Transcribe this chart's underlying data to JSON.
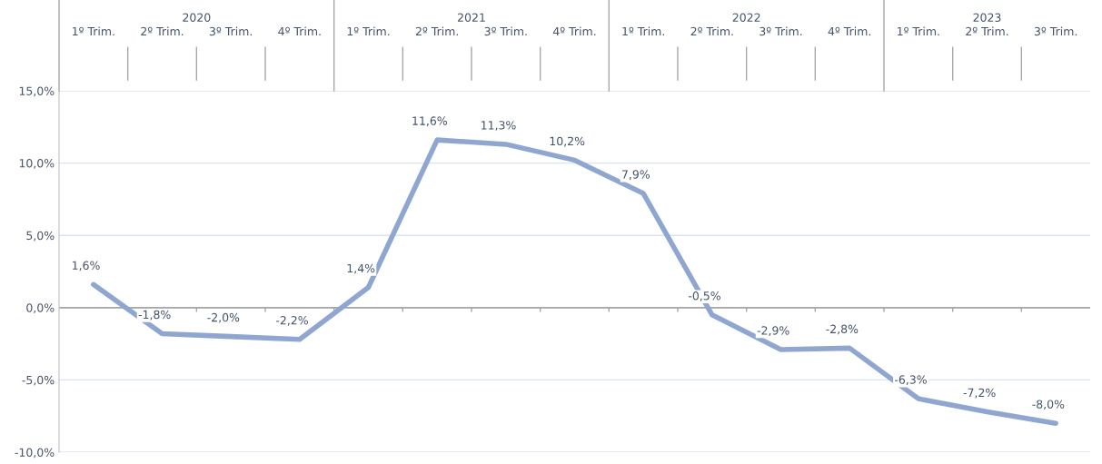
{
  "chart_data": {
    "type": "line",
    "categories": [
      "1º Trim.",
      "2º Trim.",
      "3º Trim.",
      "4º Trim.",
      "1º Trim.",
      "2º Trim.",
      "3º Trim.",
      "4º Trim.",
      "1º Trim.",
      "2º Trim.",
      "3º Trim.",
      "4º Trim.",
      "1º Trim.",
      "2º Trim.",
      "3º Trim."
    ],
    "series": [
      {
        "color": "#8fa7d0",
        "values": [
          1.6,
          -1.8,
          -2.0,
          -2.2,
          1.4,
          11.6,
          11.3,
          10.2,
          7.9,
          -0.5,
          -2.9,
          -2.8,
          -6.3,
          -7.2,
          -8.0
        ],
        "value_labels": [
          "1,6%",
          "-1,8%",
          "-2,0%",
          "-2,2%",
          "1,4%",
          "11,6%",
          "11,3%",
          "10,2%",
          "7,9%",
          "-0,5%",
          "-2,9%",
          "-2,8%",
          "-6,3%",
          "-7,2%",
          "-8,0%"
        ]
      }
    ],
    "annotations": [
      "2020",
      "2021",
      "2022",
      "2023"
    ],
    "ylim": [
      -10,
      15
    ],
    "yticks": [
      {
        "value": -10,
        "label": "-10,0%"
      },
      {
        "value": -5,
        "label": "-5,0%"
      },
      {
        "value": 0,
        "label": "0,0%"
      },
      {
        "value": 5,
        "label": "5,0%"
      },
      {
        "value": 10,
        "label": "10,0%"
      },
      {
        "value": 15,
        "label": "15,0%"
      }
    ],
    "grid": "y",
    "ref_lines": [
      {
        "axis": "y",
        "value": 0,
        "color": "#a6a6a6"
      }
    ],
    "marker": "none",
    "line_style": "solid",
    "legend": false
  }
}
